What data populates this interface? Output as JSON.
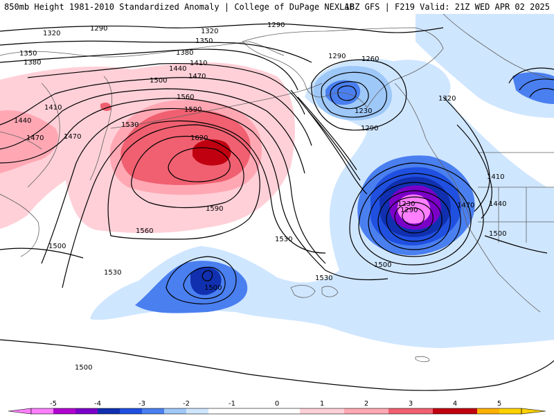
{
  "header": {
    "title_left": "850mb Height 1981-2010 Standardized Anomaly | College of DuPage NEXLAB",
    "title_right": "18Z GFS | F219 Valid: 21Z WED APR 02 2025"
  },
  "contour_labels": [
    "1290",
    "1320",
    "1320",
    "1290",
    "1350",
    "1350",
    "1380",
    "1380",
    "1410",
    "1440",
    "1470",
    "1500",
    "1560",
    "1590",
    "1620",
    "1530",
    "1410",
    "1440",
    "1470",
    "1470",
    "1590",
    "1560",
    "1530",
    "1500",
    "1530",
    "1500",
    "1530",
    "1290",
    "1260",
    "1230",
    "1290",
    "1320",
    "1230",
    "1290",
    "1410",
    "1440",
    "1470",
    "1500",
    "1500",
    "1500"
  ],
  "colorbar": {
    "ticks": [
      "-5",
      "-4",
      "-3",
      "-2",
      "-1",
      "0",
      "1",
      "2",
      "3",
      "4",
      "5"
    ],
    "colors": [
      "#ff80ff",
      "#b000d0",
      "#7a00c8",
      "#1030b0",
      "#2050e0",
      "#4a7ff0",
      "#9ec8f8",
      "#cfe6ff",
      "#ffffff",
      "#ffffff",
      "#ffd0d8",
      "#ffa8b4",
      "#f06070",
      "#c00010",
      "#ffb000",
      "#ffd200"
    ]
  }
}
